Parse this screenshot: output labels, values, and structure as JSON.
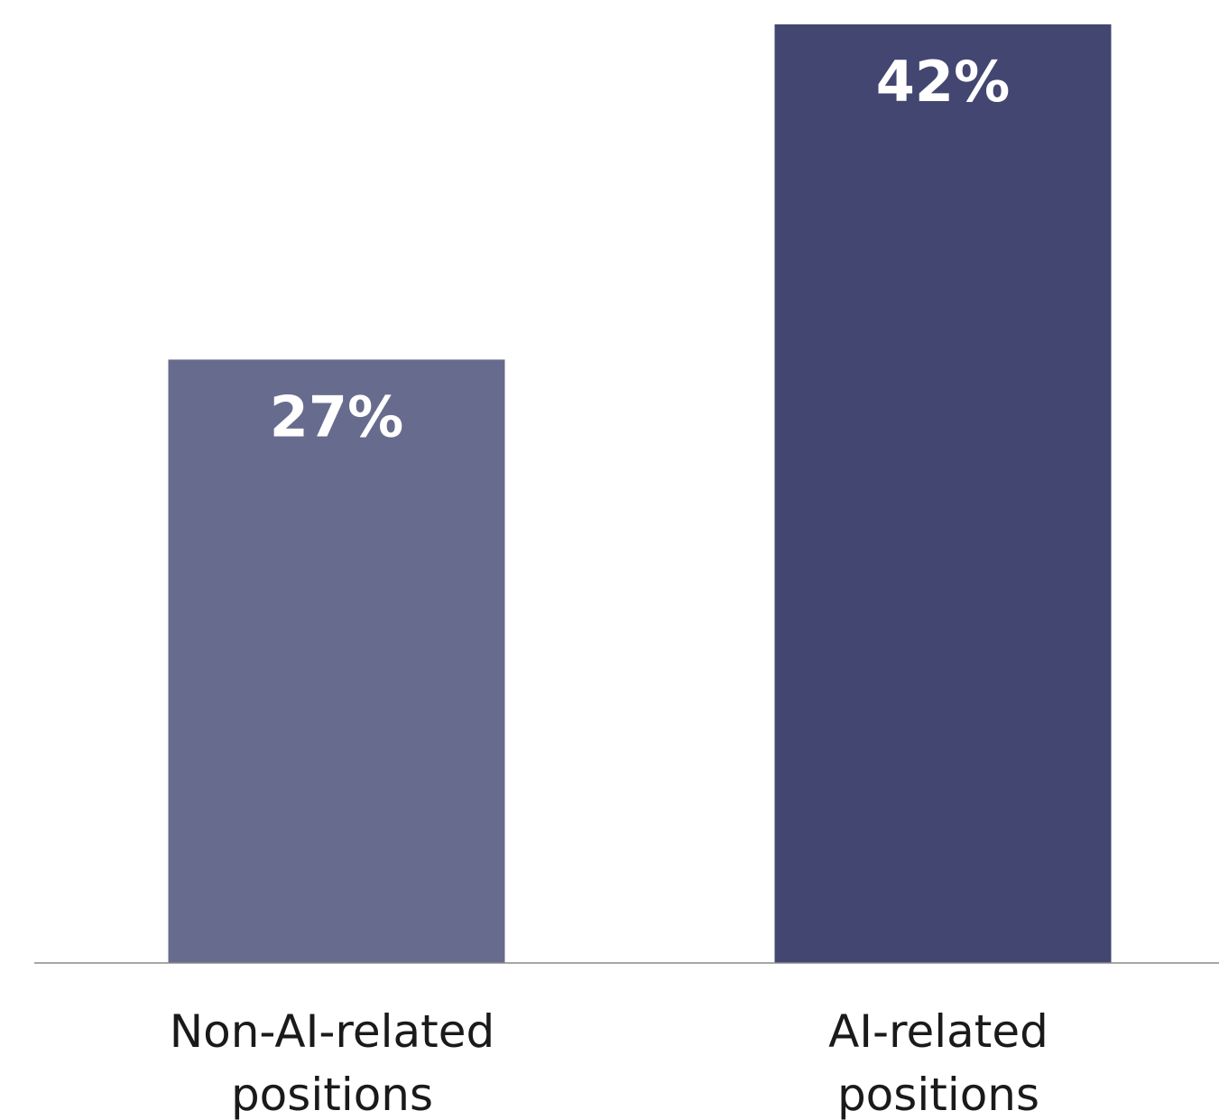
{
  "chart_data": {
    "type": "bar",
    "categories": [
      [
        "Non-AI-related",
        "positions"
      ],
      [
        "AI-related",
        "positions"
      ]
    ],
    "values": [
      27,
      42
    ],
    "value_labels": [
      "27%",
      "42%"
    ],
    "unit": "%",
    "ylim": [
      0,
      42
    ],
    "title": "",
    "xlabel": "",
    "ylabel": "",
    "grid": false,
    "legend": "none",
    "colors": [
      "#676b8d",
      "#424671"
    ],
    "axis_color": "#888888"
  }
}
